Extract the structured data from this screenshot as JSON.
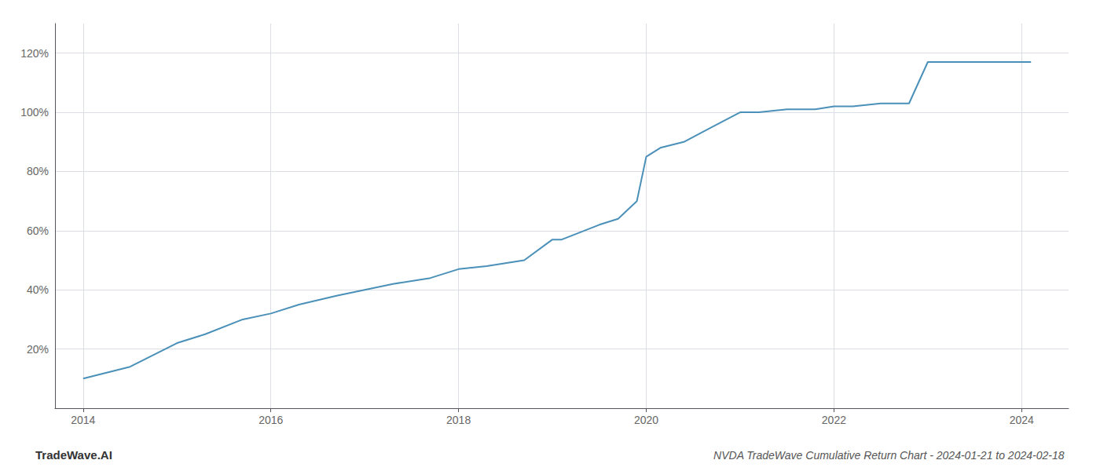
{
  "chart_data": {
    "type": "line",
    "title": "NVDA TradeWave Cumulative Return Chart - 2024-01-21 to 2024-02-18",
    "annotations": [
      "TradeWave.AI"
    ],
    "x": [
      2014.0,
      2014.5,
      2015.0,
      2015.3,
      2015.7,
      2016.0,
      2016.3,
      2016.7,
      2017.0,
      2017.3,
      2017.7,
      2018.0,
      2018.3,
      2018.7,
      2019.0,
      2019.1,
      2019.5,
      2019.7,
      2019.9,
      2020.0,
      2020.15,
      2020.4,
      2020.7,
      2021.0,
      2021.2,
      2021.5,
      2021.8,
      2022.0,
      2022.05,
      2022.2,
      2022.5,
      2022.8,
      2023.0,
      2023.3,
      2023.5,
      2023.8,
      2024.0,
      2024.1
    ],
    "values": [
      10,
      14,
      22,
      25,
      30,
      32,
      35,
      38,
      40,
      42,
      44,
      47,
      48,
      50,
      57,
      57,
      62,
      64,
      70,
      85,
      88,
      90,
      95,
      100,
      100,
      101,
      101,
      102,
      102,
      102,
      103,
      103,
      117,
      117,
      117,
      117,
      117,
      117
    ],
    "color": "#4a90b8",
    "xlim": [
      2013.7,
      2024.5
    ],
    "ylim": [
      0,
      130
    ],
    "xticks": [
      2014,
      2016,
      2018,
      2020,
      2022,
      2024
    ],
    "yticks": [
      {
        "value": 20,
        "label": "20%"
      },
      {
        "value": 40,
        "label": "40%"
      },
      {
        "value": 60,
        "label": "60%"
      },
      {
        "value": 80,
        "label": "80%"
      },
      {
        "value": 100,
        "label": "100%"
      },
      {
        "value": 120,
        "label": "120%"
      }
    ],
    "grid": true
  }
}
